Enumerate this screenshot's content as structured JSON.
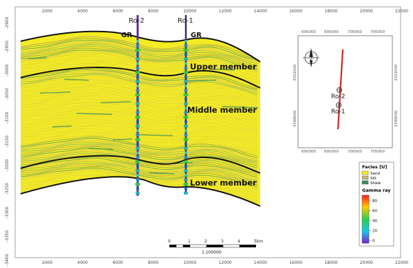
{
  "x_axis": {
    "ticks": [
      "2000",
      "4000",
      "6000",
      "8000",
      "10000",
      "12000",
      "14000",
      "16000",
      "18000",
      "20000",
      "22000"
    ]
  },
  "y_axis": {
    "ticks": [
      "-2900",
      "-2950",
      "-3000",
      "-3050",
      "-3100",
      "-3150",
      "-3200",
      "-3250",
      "-3300",
      "-3350",
      "-3400"
    ]
  },
  "wells": [
    {
      "name": "Ro-2",
      "log_label": "GR"
    },
    {
      "name": "Ro-1",
      "log_label": "GR"
    }
  ],
  "members": [
    "Upper member",
    "Middle member",
    "Lower member"
  ],
  "map": {
    "x_ticks": [
      "690000",
      "695000",
      "700000",
      "705000"
    ],
    "y_ticks": [
      "3352000",
      "3348000"
    ],
    "wells": [
      "Ro-2",
      "Ro-1"
    ],
    "north_label": "N",
    "section_color": "#d42020"
  },
  "facies_legend": {
    "title": "Facies [U]",
    "items": [
      {
        "label": "Sand",
        "color": "#f5ee1a"
      },
      {
        "label": "Silt",
        "color": "#c8b87a"
      },
      {
        "label": "Shale",
        "color": "#3f8f5a"
      }
    ]
  },
  "gamma_legend": {
    "title": "Gamma ray",
    "ticks": [
      "80",
      "60",
      "40",
      "20",
      "0"
    ]
  },
  "scale_bar": {
    "ticks": [
      "0",
      "1",
      "2",
      "3",
      "4",
      "5km"
    ],
    "ratio": "1:100000"
  }
}
